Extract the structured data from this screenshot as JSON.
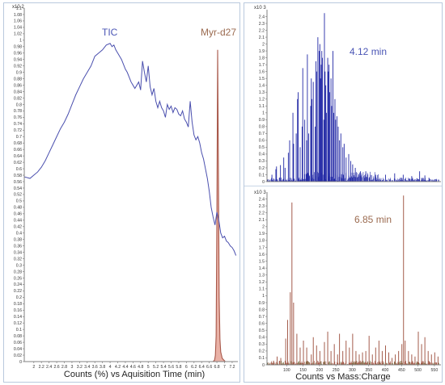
{
  "colors": {
    "tic": "#4a4fae",
    "myr": "#a8584a",
    "myr_fill": "#e5a396",
    "spec_top": "#2229a6",
    "spec_bottom": "#9a4a38",
    "spec_bottom_green": "#5f7a3c",
    "anno_blue": "#4a55b5",
    "anno_brown": "#9b6b50"
  },
  "chart_data": [
    {
      "type": "line",
      "xlabel": "Counts (%) vs Aquisition Time (min)",
      "y_exponent": "x10 2",
      "ylim": [
        0,
        1.1
      ],
      "xlim": [
        1.75,
        7.35
      ],
      "x_ticks": [
        "2",
        "2.2",
        "2.4",
        "2.6",
        "2.8",
        "3",
        "3.2",
        "3.4",
        "3.6",
        "3.8",
        "4",
        "4.2",
        "4.4",
        "4.6",
        "4.8",
        "5",
        "5.2",
        "5.4",
        "5.6",
        "5.8",
        "6",
        "6.2",
        "6.4",
        "6.6",
        "6.8",
        "7",
        "7.2"
      ],
      "y_ticks": [
        "0",
        "0.02",
        "0.04",
        "0.06",
        "0.08",
        "0.1",
        "0.12",
        "0.14",
        "0.16",
        "0.18",
        "0.2",
        "0.22",
        "0.24",
        "0.26",
        "0.28",
        "0.3",
        "0.32",
        "0.34",
        "0.36",
        "0.38",
        "0.4",
        "0.42",
        "0.44",
        "0.46",
        "0.48",
        "0.5",
        "0.52",
        "0.54",
        "0.56",
        "0.58",
        "0.6",
        "0.62",
        "0.64",
        "0.66",
        "0.68",
        "0.7",
        "0.72",
        "0.74",
        "0.76",
        "0.78",
        "0.8",
        "0.82",
        "0.84",
        "0.86",
        "0.88",
        "0.9",
        "0.92",
        "0.94",
        "0.96",
        "0.98",
        "1",
        "1.02",
        "1.04",
        "1.06",
        "1.08",
        "1.1"
      ],
      "annotations": [
        "TIC",
        "Myr-d27"
      ],
      "series": [
        {
          "name": "TIC",
          "x": [
            1.75,
            1.9,
            2.0,
            2.1,
            2.2,
            2.3,
            2.4,
            2.5,
            2.6,
            2.7,
            2.8,
            2.9,
            3.0,
            3.1,
            3.2,
            3.3,
            3.4,
            3.5,
            3.6,
            3.7,
            3.8,
            3.9,
            4.0,
            4.05,
            4.1,
            4.15,
            4.2,
            4.25,
            4.3,
            4.35,
            4.4,
            4.45,
            4.5,
            4.55,
            4.6,
            4.65,
            4.7,
            4.75,
            4.8,
            4.85,
            4.9,
            4.95,
            5.0,
            5.05,
            5.1,
            5.15,
            5.2,
            5.25,
            5.3,
            5.35,
            5.4,
            5.45,
            5.5,
            5.55,
            5.6,
            5.65,
            5.7,
            5.75,
            5.8,
            5.85,
            5.9,
            5.95,
            6.0,
            6.05,
            6.1,
            6.15,
            6.2,
            6.25,
            6.3,
            6.35,
            6.4,
            6.45,
            6.5,
            6.55,
            6.6,
            6.65,
            6.7,
            6.75,
            6.8,
            6.85,
            6.9,
            6.95,
            7.0,
            7.05,
            7.1,
            7.15,
            7.2,
            7.25,
            7.3
          ],
          "y": [
            0.575,
            0.57,
            0.58,
            0.59,
            0.605,
            0.625,
            0.65,
            0.675,
            0.7,
            0.725,
            0.745,
            0.77,
            0.8,
            0.83,
            0.855,
            0.88,
            0.9,
            0.92,
            0.95,
            0.96,
            0.97,
            0.985,
            0.99,
            0.98,
            0.985,
            0.97,
            0.96,
            0.95,
            0.94,
            0.925,
            0.91,
            0.9,
            0.885,
            0.87,
            0.86,
            0.85,
            0.86,
            0.87,
            0.845,
            0.935,
            0.9,
            0.87,
            0.92,
            0.855,
            0.83,
            0.85,
            0.81,
            0.79,
            0.81,
            0.79,
            0.78,
            0.76,
            0.8,
            0.785,
            0.795,
            0.775,
            0.79,
            0.785,
            0.77,
            0.765,
            0.78,
            0.755,
            0.745,
            0.73,
            0.81,
            0.745,
            0.705,
            0.69,
            0.7,
            0.68,
            0.65,
            0.63,
            0.6,
            0.57,
            0.53,
            0.48,
            0.45,
            0.425,
            0.465,
            0.44,
            0.4,
            0.385,
            0.39,
            0.375,
            0.37,
            0.36,
            0.355,
            0.345,
            0.33
          ]
        },
        {
          "name": "Myr-d27",
          "x": [
            6.7,
            6.74,
            6.76,
            6.78,
            6.8,
            6.82,
            6.84,
            6.86,
            6.88,
            6.9,
            6.94,
            6.98,
            7.02
          ],
          "y": [
            0,
            0.005,
            0.02,
            0.08,
            0.45,
            0.97,
            0.6,
            0.2,
            0.07,
            0.03,
            0.01,
            0.005,
            0
          ]
        }
      ]
    },
    {
      "type": "bar",
      "xlabel": "Counts vs Mass:Charge",
      "annotation": "4.12 min",
      "y_exponent": "x10 3",
      "ylim": [
        0,
        2.5
      ],
      "xlim": [
        40,
        570
      ],
      "x_ticks": [],
      "y_ticks": [
        "0",
        "0.1",
        "0.2",
        "0.3",
        "0.4",
        "0.5",
        "0.6",
        "0.7",
        "0.8",
        "0.9",
        "1",
        "1.1",
        "1.2",
        "1.3",
        "1.4",
        "1.5",
        "1.6",
        "1.7",
        "1.8",
        "1.9",
        "2",
        "2.1",
        "2.2",
        "2.3",
        "2.4"
      ],
      "peaks": {
        "mz": [
          55,
          67,
          69,
          81,
          91,
          95,
          105,
          109,
          119,
          121,
          129,
          133,
          135,
          141,
          147,
          149,
          155,
          161,
          163,
          167,
          173,
          175,
          177,
          181,
          187,
          189,
          191,
          195,
          199,
          201,
          203,
          205,
          207,
          209,
          213,
          215,
          217,
          219,
          221,
          225,
          227,
          229,
          231,
          235,
          237,
          241,
          243,
          247,
          249,
          253,
          257,
          261,
          265,
          271,
          275,
          281,
          289,
          295,
          301,
          309,
          325,
          341,
          371,
          401,
          429,
          455,
          481,
          505,
          521
        ],
        "intensity": [
          0.1,
          0.18,
          0.22,
          0.24,
          0.35,
          0.2,
          0.42,
          0.6,
          1.0,
          0.55,
          0.7,
          1.2,
          1.3,
          0.5,
          0.8,
          1.65,
          0.9,
          0.6,
          1.85,
          0.7,
          1.1,
          1.5,
          1.2,
          1.45,
          0.8,
          1.75,
          1.6,
          2.1,
          1.9,
          2.0,
          1.5,
          1.7,
          1.9,
          1.8,
          0.9,
          2.45,
          1.6,
          1.4,
          1.0,
          1.8,
          1.6,
          1.7,
          1.3,
          1.5,
          1.1,
          1.9,
          1.0,
          1.2,
          0.9,
          0.95,
          0.8,
          0.6,
          0.7,
          0.5,
          0.55,
          0.35,
          0.4,
          0.3,
          0.25,
          0.2,
          0.15,
          0.15,
          0.1,
          0.1,
          0.12,
          0.1,
          0.08,
          0.15,
          0.09
        ]
      }
    },
    {
      "type": "bar",
      "xlabel": "Counts vs Mass:Charge",
      "annotation": "6.85 min",
      "y_exponent": "x10 3",
      "ylim": [
        0,
        2.5
      ],
      "xlim": [
        40,
        570
      ],
      "x_ticks": [
        "100",
        "150",
        "200",
        "250",
        "300",
        "350",
        "400",
        "450",
        "500",
        "550"
      ],
      "y_ticks": [
        "0",
        "0.1",
        "0.2",
        "0.3",
        "0.4",
        "0.5",
        "0.6",
        "0.7",
        "0.8",
        "0.9",
        "1",
        "1.1",
        "1.2",
        "1.3",
        "1.4",
        "1.5",
        "1.6",
        "1.7",
        "1.8",
        "1.9",
        "2",
        "2.1",
        "2.2",
        "2.3",
        "2.4"
      ],
      "peaks": {
        "mz": [
          60,
          71,
          82,
          97,
          103,
          111,
          116,
          121,
          131,
          141,
          151,
          161,
          175,
          181,
          191,
          201,
          215,
          225,
          235,
          245,
          255,
          261,
          271,
          281,
          291,
          301,
          311,
          321,
          331,
          341,
          351,
          361,
          371,
          381,
          391,
          401,
          411,
          421,
          431,
          441,
          451,
          456,
          461,
          471,
          481,
          491,
          501,
          511,
          521,
          531,
          541,
          551,
          561
        ],
        "intensity": [
          0.06,
          0.12,
          0.1,
          0.38,
          0.65,
          1.05,
          2.35,
          0.9,
          0.45,
          0.25,
          0.35,
          0.25,
          0.15,
          0.4,
          0.28,
          0.2,
          0.33,
          0.48,
          0.2,
          0.3,
          0.15,
          0.45,
          0.2,
          0.35,
          0.25,
          0.45,
          0.2,
          0.15,
          0.18,
          0.2,
          0.42,
          0.15,
          0.25,
          0.35,
          0.2,
          0.28,
          0.18,
          0.1,
          0.15,
          0.2,
          0.3,
          2.45,
          0.35,
          0.2,
          0.15,
          0.12,
          0.48,
          0.3,
          0.4,
          0.2,
          0.15,
          0.18,
          0.12
        ]
      }
    }
  ]
}
